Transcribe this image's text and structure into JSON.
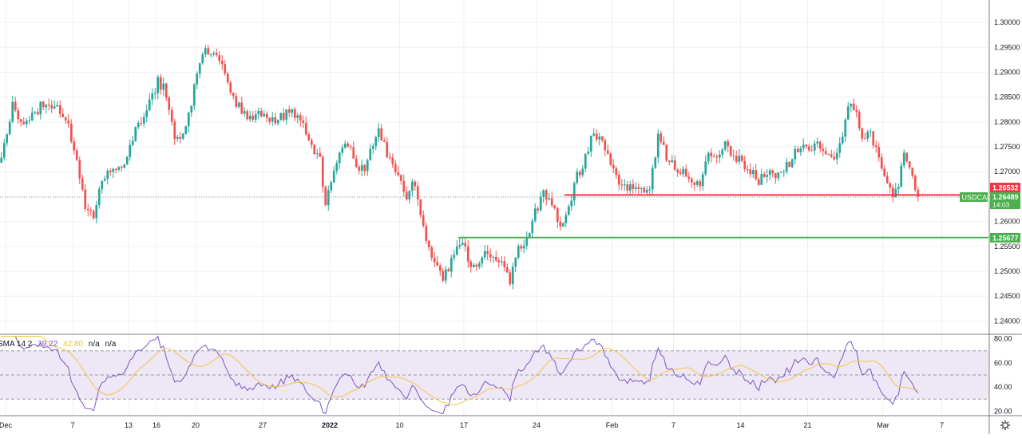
{
  "chart_data": {
    "type": "candlestick",
    "symbol": "USDCAD",
    "colors": {
      "up": "#26a69a",
      "down": "#ef5350",
      "grid": "#eef0f3",
      "level_red": "#f23645",
      "level_green": "#4caf50",
      "rsi": "#7e57c2",
      "rsi_ma": "#f7c548",
      "rsi_band": "#ede7f6"
    },
    "price_axis": {
      "ylim": [
        1.2375,
        1.3045
      ],
      "ticks": [
        "1.30000",
        "1.29500",
        "1.29000",
        "1.28500",
        "1.28000",
        "1.27500",
        "1.27000",
        "1.26500",
        "1.26000",
        "1.25500",
        "1.25000",
        "1.24500",
        "1.24000"
      ]
    },
    "time_axis": {
      "ticks": [
        {
          "label": "Dec",
          "bar": 2
        },
        {
          "label": "7",
          "bar": 26
        },
        {
          "label": "13",
          "bar": 46
        },
        {
          "label": "16",
          "bar": 56
        },
        {
          "label": "20",
          "bar": 70
        },
        {
          "label": "27",
          "bar": 94
        },
        {
          "label": "2022",
          "bar": 118
        },
        {
          "label": "10",
          "bar": 143
        },
        {
          "label": "17",
          "bar": 166
        },
        {
          "label": "24",
          "bar": 192
        },
        {
          "label": "Feb",
          "bar": 219
        },
        {
          "label": "7",
          "bar": 241
        },
        {
          "label": "14",
          "bar": 265
        },
        {
          "label": "21",
          "bar": 289
        },
        {
          "label": "Mar",
          "bar": 316
        },
        {
          "label": "7",
          "bar": 337
        }
      ]
    },
    "levels": [
      {
        "name": "resistance",
        "value": 1.26532,
        "label": "1.26532",
        "start_bar": 202
      },
      {
        "name": "support",
        "value": 1.25677,
        "label": "1.25677",
        "start_bar": 164
      }
    ],
    "last_price": {
      "symbol": "USDCAD",
      "value": 1.26489,
      "label": "1.26489",
      "countdown": "14:03"
    },
    "anchors": [
      [
        0,
        1.273
      ],
      [
        4,
        1.283
      ],
      [
        8,
        1.28
      ],
      [
        12,
        1.282
      ],
      [
        16,
        1.284
      ],
      [
        20,
        1.283
      ],
      [
        24,
        1.279
      ],
      [
        27,
        1.272
      ],
      [
        30,
        1.262
      ],
      [
        33,
        1.261
      ],
      [
        36,
        1.268
      ],
      [
        40,
        1.271
      ],
      [
        44,
        1.272
      ],
      [
        48,
        1.278
      ],
      [
        52,
        1.283
      ],
      [
        56,
        1.288
      ],
      [
        58,
        1.287
      ],
      [
        60,
        1.282
      ],
      [
        62,
        1.277
      ],
      [
        65,
        1.278
      ],
      [
        68,
        1.284
      ],
      [
        71,
        1.292
      ],
      [
        73,
        1.295
      ],
      [
        76,
        1.293
      ],
      [
        79,
        1.291
      ],
      [
        82,
        1.286
      ],
      [
        86,
        1.282
      ],
      [
        90,
        1.281
      ],
      [
        94,
        1.282
      ],
      [
        98,
        1.28
      ],
      [
        102,
        1.282
      ],
      [
        106,
        1.281
      ],
      [
        110,
        1.277
      ],
      [
        114,
        1.272
      ],
      [
        116,
        1.264
      ],
      [
        118,
        1.268
      ],
      [
        121,
        1.274
      ],
      [
        124,
        1.276
      ],
      [
        127,
        1.271
      ],
      [
        130,
        1.271
      ],
      [
        133,
        1.275
      ],
      [
        135,
        1.279
      ],
      [
        138,
        1.274
      ],
      [
        140,
        1.271
      ],
      [
        143,
        1.268
      ],
      [
        145,
        1.264
      ],
      [
        147,
        1.268
      ],
      [
        149,
        1.264
      ],
      [
        152,
        1.256
      ],
      [
        155,
        1.252
      ],
      [
        158,
        1.249
      ],
      [
        160,
        1.251
      ],
      [
        163,
        1.254
      ],
      [
        165,
        1.256
      ],
      [
        167,
        1.252
      ],
      [
        170,
        1.251
      ],
      [
        173,
        1.254
      ],
      [
        176,
        1.252
      ],
      [
        179,
        1.251
      ],
      [
        182,
        1.248
      ],
      [
        185,
        1.254
      ],
      [
        188,
        1.256
      ],
      [
        191,
        1.262
      ],
      [
        194,
        1.266
      ],
      [
        197,
        1.264
      ],
      [
        200,
        1.259
      ],
      [
        203,
        1.263
      ],
      [
        206,
        1.269
      ],
      [
        209,
        1.273
      ],
      [
        212,
        1.278
      ],
      [
        215,
        1.276
      ],
      [
        218,
        1.272
      ],
      [
        221,
        1.268
      ],
      [
        225,
        1.267
      ],
      [
        228,
        1.266
      ],
      [
        232,
        1.267
      ],
      [
        235,
        1.277
      ],
      [
        238,
        1.273
      ],
      [
        241,
        1.271
      ],
      [
        244,
        1.27
      ],
      [
        247,
        1.267
      ],
      [
        250,
        1.268
      ],
      [
        253,
        1.273
      ],
      [
        256,
        1.272
      ],
      [
        259,
        1.275
      ],
      [
        262,
        1.273
      ],
      [
        265,
        1.272
      ],
      [
        268,
        1.27
      ],
      [
        271,
        1.268
      ],
      [
        274,
        1.27
      ],
      [
        277,
        1.269
      ],
      [
        280,
        1.27
      ],
      [
        283,
        1.273
      ],
      [
        286,
        1.275
      ],
      [
        289,
        1.274
      ],
      [
        292,
        1.276
      ],
      [
        295,
        1.274
      ],
      [
        298,
        1.273
      ],
      [
        301,
        1.278
      ],
      [
        303,
        1.284
      ],
      [
        305,
        1.283
      ],
      [
        307,
        1.279
      ],
      [
        309,
        1.276
      ],
      [
        311,
        1.278
      ],
      [
        314,
        1.273
      ],
      [
        317,
        1.267
      ],
      [
        319,
        1.266
      ],
      [
        321,
        1.268
      ],
      [
        323,
        1.273
      ],
      [
        325,
        1.271
      ],
      [
        326,
        1.269
      ],
      [
        328,
        1.2655
      ]
    ],
    "rsi": {
      "label": "SMA 14 2",
      "value": "39.22",
      "ma_value": "42.80",
      "na_labels": [
        "n/a",
        "n/a"
      ],
      "ylim": [
        17,
        83
      ],
      "ticks": [
        "80.00",
        "60.00",
        "40.00",
        "20.00"
      ],
      "upper": 70,
      "mid": 50,
      "lower": 30
    }
  }
}
